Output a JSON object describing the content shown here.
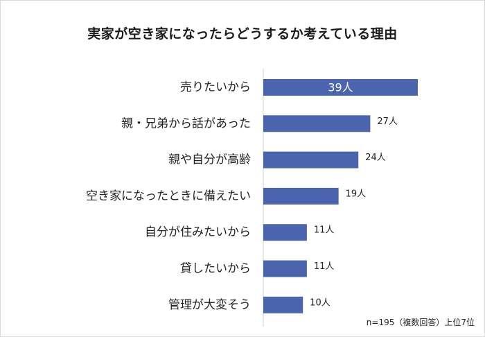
{
  "chart_data": {
    "type": "bar",
    "orientation": "horizontal",
    "title": "実家が空き家になったらどうするか考えている理由",
    "categories": [
      "売りたいから",
      "親・兄弟から話があった",
      "親や自分が高齢",
      "空き家になったときに備えたい",
      "自分が住みたいから",
      "貸したいから",
      "管理が大変そう"
    ],
    "values": [
      39,
      27,
      24,
      19,
      11,
      11,
      10
    ],
    "value_labels": [
      "39人",
      "27人",
      "24人",
      "19人",
      "11人",
      "11人",
      "10人"
    ],
    "xlim": [
      0,
      39
    ],
    "grid": false,
    "legend": "none",
    "bar_color": "#4a64ad",
    "note": "n=195（複数回答）上位7位"
  }
}
